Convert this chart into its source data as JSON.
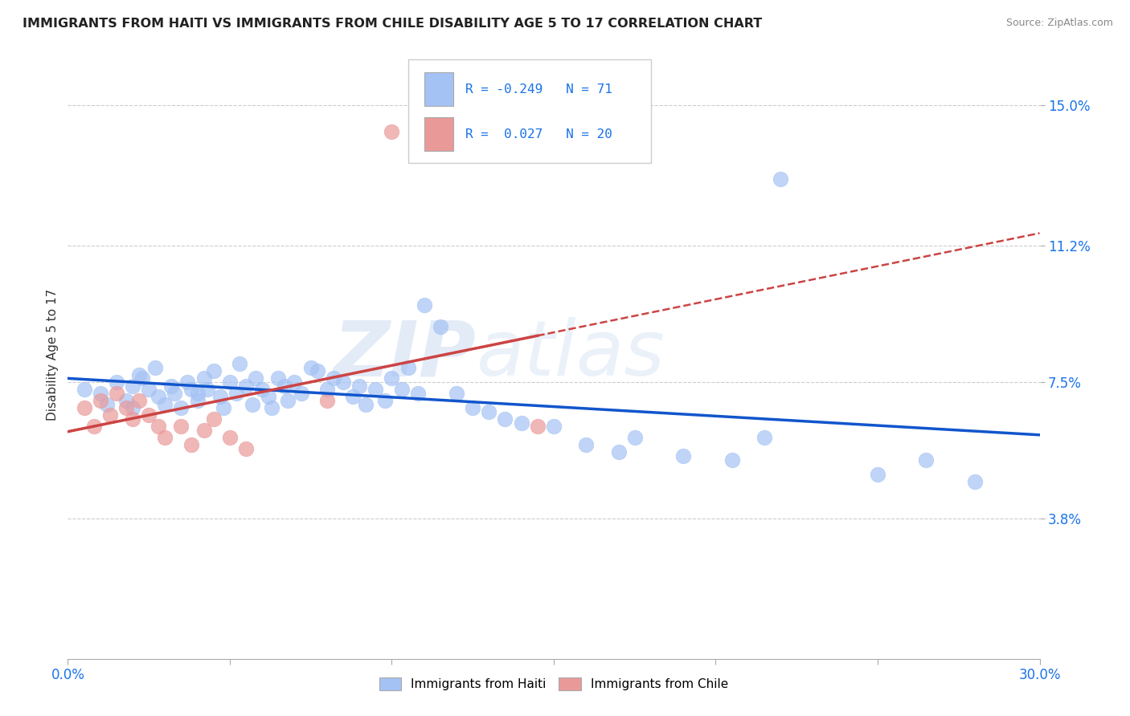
{
  "title": "IMMIGRANTS FROM HAITI VS IMMIGRANTS FROM CHILE DISABILITY AGE 5 TO 17 CORRELATION CHART",
  "source": "Source: ZipAtlas.com",
  "ylabel": "Disability Age 5 to 17",
  "xlim": [
    0.0,
    0.3
  ],
  "ylim": [
    0.0,
    0.165
  ],
  "yticks": [
    0.038,
    0.075,
    0.112,
    0.15
  ],
  "ytick_labels": [
    "3.8%",
    "7.5%",
    "11.2%",
    "15.0%"
  ],
  "xticks": [
    0.0,
    0.05,
    0.1,
    0.15,
    0.2,
    0.25,
    0.3
  ],
  "xtick_labels": [
    "0.0%",
    "",
    "",
    "",
    "",
    "",
    "30.0%"
  ],
  "haiti_color": "#a4c2f4",
  "chile_color": "#ea9999",
  "haiti_line_color": "#1155cc",
  "chile_line_color": "#cc4444",
  "haiti_R": -0.249,
  "haiti_N": 71,
  "chile_R": 0.027,
  "chile_N": 20,
  "haiti_scatter_x": [
    0.005,
    0.01,
    0.012,
    0.015,
    0.018,
    0.02,
    0.02,
    0.022,
    0.023,
    0.025,
    0.027,
    0.028,
    0.03,
    0.032,
    0.033,
    0.035,
    0.037,
    0.038,
    0.04,
    0.04,
    0.042,
    0.043,
    0.045,
    0.047,
    0.048,
    0.05,
    0.052,
    0.053,
    0.055,
    0.057,
    0.058,
    0.06,
    0.062,
    0.063,
    0.065,
    0.067,
    0.068,
    0.07,
    0.072,
    0.075,
    0.077,
    0.08,
    0.082,
    0.085,
    0.088,
    0.09,
    0.092,
    0.095,
    0.098,
    0.1,
    0.103,
    0.105,
    0.108,
    0.11,
    0.115,
    0.12,
    0.125,
    0.13,
    0.135,
    0.14,
    0.15,
    0.16,
    0.17,
    0.175,
    0.19,
    0.205,
    0.215,
    0.22,
    0.25,
    0.265,
    0.28
  ],
  "haiti_scatter_y": [
    0.073,
    0.072,
    0.069,
    0.075,
    0.07,
    0.074,
    0.068,
    0.077,
    0.076,
    0.073,
    0.079,
    0.071,
    0.069,
    0.074,
    0.072,
    0.068,
    0.075,
    0.073,
    0.07,
    0.072,
    0.076,
    0.073,
    0.078,
    0.071,
    0.068,
    0.075,
    0.072,
    0.08,
    0.074,
    0.069,
    0.076,
    0.073,
    0.071,
    0.068,
    0.076,
    0.074,
    0.07,
    0.075,
    0.072,
    0.079,
    0.078,
    0.073,
    0.076,
    0.075,
    0.071,
    0.074,
    0.069,
    0.073,
    0.07,
    0.076,
    0.073,
    0.079,
    0.072,
    0.096,
    0.09,
    0.072,
    0.068,
    0.067,
    0.065,
    0.064,
    0.063,
    0.058,
    0.056,
    0.06,
    0.055,
    0.054,
    0.06,
    0.13,
    0.05,
    0.054,
    0.048
  ],
  "chile_scatter_x": [
    0.005,
    0.008,
    0.01,
    0.013,
    0.015,
    0.018,
    0.02,
    0.022,
    0.025,
    0.028,
    0.03,
    0.035,
    0.038,
    0.042,
    0.045,
    0.05,
    0.055,
    0.08,
    0.1,
    0.145
  ],
  "chile_scatter_y": [
    0.068,
    0.063,
    0.07,
    0.066,
    0.072,
    0.068,
    0.065,
    0.07,
    0.066,
    0.063,
    0.06,
    0.063,
    0.058,
    0.062,
    0.065,
    0.06,
    0.057,
    0.07,
    0.143,
    0.063
  ],
  "watermark_zip": "ZIP",
  "watermark_atlas": "atlas",
  "background_color": "#ffffff",
  "grid_color": "#cccccc"
}
